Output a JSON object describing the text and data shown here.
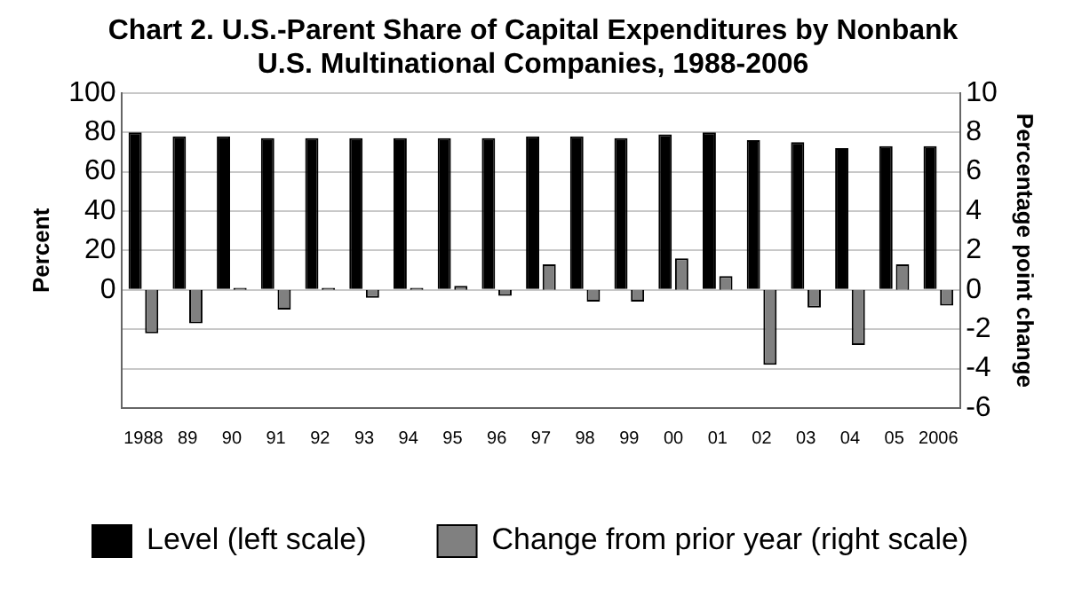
{
  "chart_data": {
    "type": "bar",
    "title": "Chart 2. U.S.-Parent Share of Capital Expenditures by Nonbank U.S. Multinational Companies, 1988-2006",
    "ylabel": "Percent",
    "y2label": "Percentage point change",
    "categories": [
      "1988",
      "89",
      "90",
      "91",
      "92",
      "93",
      "94",
      "95",
      "96",
      "97",
      "98",
      "99",
      "00",
      "01",
      "02",
      "03",
      "04",
      "05",
      "2006"
    ],
    "series": [
      {
        "name": "Level (left scale)",
        "color": "#000000",
        "values": [
          80,
          78,
          78,
          77,
          77,
          77,
          77,
          77,
          77,
          78,
          78,
          77,
          79,
          80,
          76,
          75,
          72,
          73,
          73
        ]
      },
      {
        "name": "Change from prior year (right scale)",
        "color": "#808080",
        "axis": "y2",
        "values": [
          -2.2,
          -1.7,
          0.1,
          -1.0,
          0.1,
          -0.4,
          0.1,
          0.2,
          -0.3,
          1.3,
          -0.6,
          -0.6,
          1.6,
          0.7,
          -3.8,
          -0.9,
          -2.8,
          1.3,
          -0.8
        ]
      }
    ],
    "ylim": [
      -60,
      100
    ],
    "yticks": [
      {
        "value": -60,
        "label": null
      },
      {
        "value": -40,
        "label": null
      },
      {
        "value": -20,
        "label": null
      },
      0,
      20,
      40,
      60,
      80,
      100
    ],
    "y2lim": [
      -6,
      10
    ],
    "y2ticks": [
      -6,
      -4,
      -2,
      0,
      2,
      4,
      6,
      8,
      10
    ],
    "grid": "y",
    "legend": "bottom"
  }
}
